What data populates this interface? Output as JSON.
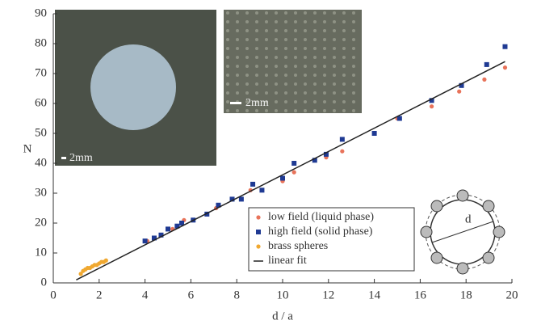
{
  "chart_data": {
    "type": "scatter",
    "xlabel": "d / a",
    "ylabel": "N",
    "xlim": [
      0,
      20
    ],
    "ylim": [
      0,
      90
    ],
    "xticks": [
      0,
      2,
      4,
      6,
      8,
      10,
      12,
      14,
      16,
      18,
      20
    ],
    "yticks": [
      0,
      10,
      20,
      30,
      40,
      50,
      60,
      70,
      80,
      90
    ],
    "legend": "lower right",
    "series": [
      {
        "name": "low field (liquid phase)",
        "color": "#e8735a",
        "marker": "dot",
        "x": [
          4.1,
          5.2,
          5.7,
          7.1,
          8.6,
          10,
          10.5,
          11.9,
          12.6,
          15,
          16.5,
          17.7,
          18.8,
          19.7
        ],
        "values": [
          14,
          18,
          21,
          25,
          31,
          34,
          37,
          42,
          44,
          55,
          59,
          64,
          68,
          72
        ]
      },
      {
        "name": "high field (solid phase)",
        "color": "#1f3a93",
        "marker": "square",
        "x": [
          4,
          4.4,
          4.7,
          5,
          5.4,
          5.6,
          6.1,
          6.7,
          7.2,
          7.8,
          8.2,
          8.7,
          9.1,
          10,
          10.5,
          11.4,
          11.9,
          12.6,
          14,
          15.1,
          16.5,
          17.8,
          18.9,
          19.7
        ],
        "values": [
          14,
          15,
          16,
          18,
          19,
          20,
          21,
          23,
          26,
          28,
          28,
          33,
          31,
          35,
          40,
          41,
          43,
          48,
          50,
          55,
          61,
          66,
          73,
          79
        ]
      },
      {
        "name": "brass spheres",
        "color": "#f0a830",
        "marker": "dot",
        "x": [
          1.2,
          1.3,
          1.4,
          1.5,
          1.6,
          1.7,
          1.8,
          1.9,
          2.0,
          2.1,
          2.2,
          2.3
        ],
        "values": [
          3,
          4,
          4.5,
          5,
          5,
          5.5,
          6,
          6,
          6.5,
          7,
          7,
          7.5
        ]
      },
      {
        "name": "linear fit",
        "color": "#222222",
        "marker": "line",
        "x": [
          1,
          19.7
        ],
        "values": [
          1,
          74
        ]
      }
    ],
    "insets": {
      "scale_left": "2mm",
      "scale_right": "2mm",
      "diagram_label": "d"
    }
  }
}
